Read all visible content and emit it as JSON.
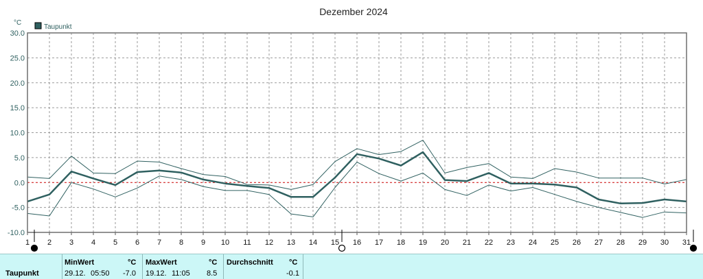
{
  "chart_data": {
    "type": "line",
    "title": "Dezember 2024",
    "ylabel": "°C",
    "xlabel": "",
    "legend": {
      "label": "Taupunkt",
      "position": "top-left",
      "color": "#2f6060"
    },
    "ylim": [
      -10,
      30
    ],
    "yticks": [
      "-10.0",
      "-5.0",
      "0.0",
      "5.0",
      "10.0",
      "15.0",
      "20.0",
      "25.0",
      "30.0"
    ],
    "x": [
      1,
      2,
      3,
      4,
      5,
      6,
      7,
      8,
      9,
      10,
      11,
      12,
      13,
      14,
      15,
      16,
      17,
      18,
      19,
      20,
      21,
      22,
      23,
      24,
      25,
      26,
      27,
      28,
      29,
      30,
      31
    ],
    "xticks": [
      "1",
      "2",
      "3",
      "4",
      "5",
      "6",
      "7",
      "8",
      "9",
      "10",
      "11",
      "12",
      "13",
      "14",
      "15",
      "16",
      "17",
      "18",
      "19",
      "20",
      "21",
      "22",
      "23",
      "24",
      "25",
      "26",
      "27",
      "28",
      "29",
      "30",
      "31"
    ],
    "grid": true,
    "zero_line_color": "#cc0000",
    "moon_phases": [
      {
        "day": 1,
        "phase": "new-moon"
      },
      {
        "day": 15,
        "phase": "full-moon"
      },
      {
        "day": 31,
        "phase": "new-moon"
      }
    ],
    "series": [
      {
        "name": "Taupunkt",
        "color": "#2f6060",
        "values": [
          -3.8,
          -2.4,
          2.2,
          0.8,
          -0.5,
          2.1,
          2.4,
          2.0,
          0.6,
          -0.2,
          -0.7,
          -1.1,
          -2.9,
          -2.9,
          1.0,
          5.7,
          4.8,
          3.4,
          6.1,
          0.5,
          0.3,
          1.9,
          -0.2,
          -0.2,
          -0.4,
          -1.0,
          -3.4,
          -4.2,
          -4.1,
          -3.4,
          -3.8
        ]
      },
      {
        "color": "#2f6060",
        "values": [
          1.1,
          0.8,
          5.3,
          1.9,
          1.8,
          4.3,
          4.1,
          2.8,
          1.6,
          1.2,
          -0.4,
          -0.5,
          -1.4,
          -0.4,
          4.2,
          6.8,
          5.6,
          6.2,
          8.5,
          1.9,
          3.0,
          3.8,
          1.1,
          0.8,
          2.8,
          2.1,
          0.9,
          0.9,
          0.9,
          -0.3,
          0.6
        ]
      },
      {
        "color": "#2f6060",
        "values": [
          -6.2,
          -6.7,
          0.0,
          -1.3,
          -2.9,
          -1.1,
          1.3,
          0.6,
          -0.8,
          -1.6,
          -1.6,
          -2.4,
          -6.3,
          -6.9,
          -1.0,
          4.1,
          1.8,
          0.3,
          1.9,
          -1.4,
          -2.6,
          -0.5,
          -1.7,
          -1.0,
          -2.4,
          -3.8,
          -5.0,
          -6.0,
          -7.0,
          -5.9,
          -6.1
        ]
      }
    ]
  },
  "summary": {
    "row_label": "Taupunkt",
    "min": {
      "header": "MinWert",
      "unit": "°C",
      "date": "29.12.",
      "time": "05:50",
      "value": "-7.0"
    },
    "max": {
      "header": "MaxWert",
      "unit": "°C",
      "date": "19.12.",
      "time": "11:05",
      "value": "8.5"
    },
    "avg": {
      "header": "Durchschnitt",
      "unit": "°C",
      "value": "-0.1"
    }
  }
}
